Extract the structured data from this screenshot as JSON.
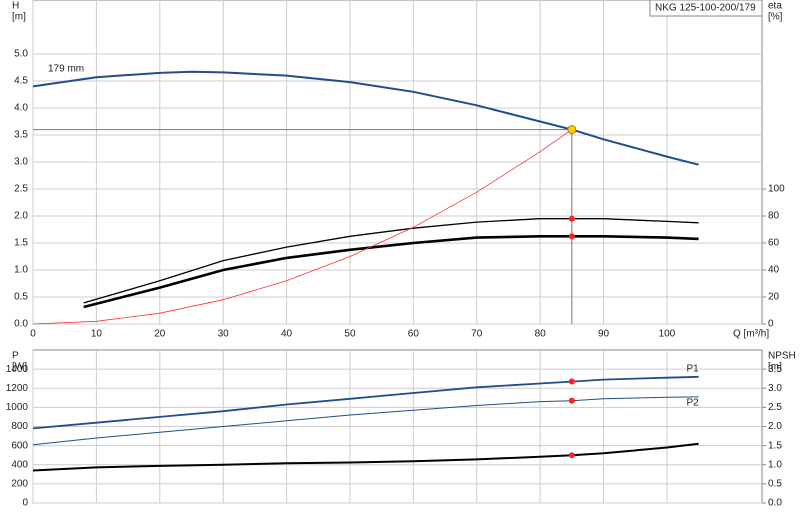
{
  "chart_data": [
    {
      "type": "line",
      "title": "NKG 125-100-200/179",
      "ylabel": "H",
      "yunit": "[m]",
      "y2label": "eta",
      "y2unit": "[%]",
      "xlabel": "Q [m³/h]",
      "xlim": [
        0,
        115
      ],
      "xticks": [
        0,
        10,
        20,
        30,
        40,
        50,
        60,
        70,
        80,
        90,
        100
      ],
      "ylim": [
        0,
        6
      ],
      "yticks": [
        {
          "value": 0,
          "label": "0.0"
        },
        {
          "value": 0.5,
          "label": "0.5"
        },
        {
          "value": 1,
          "label": "1.0"
        },
        {
          "value": 1.5,
          "label": "1.5"
        },
        {
          "value": 2,
          "label": "2.0"
        },
        {
          "value": 2.5,
          "label": "2.5"
        },
        {
          "value": 3,
          "label": "3.0"
        },
        {
          "value": 3.5,
          "label": "3.5"
        },
        {
          "value": 4,
          "label": "4.0"
        },
        {
          "value": 4.5,
          "label": "4.5"
        },
        {
          "value": 5,
          "label": "5.0"
        }
      ],
      "y2lim": [
        0,
        240
      ],
      "y2ticks": [
        0,
        20,
        40,
        60,
        80,
        100
      ],
      "grid": true,
      "show_xtick_labels": true,
      "series": [
        {
          "name": "179 mm",
          "color": "#1f4e8c",
          "width": 2,
          "x": [
            0,
            10,
            20,
            25,
            30,
            40,
            50,
            60,
            70,
            80,
            85,
            90,
            100,
            105
          ],
          "values": [
            4.4,
            4.57,
            4.65,
            4.67,
            4.66,
            4.6,
            4.48,
            4.3,
            4.05,
            3.75,
            3.6,
            3.42,
            3.1,
            2.95
          ]
        },
        {
          "color": "#000000",
          "width": 1.3,
          "axis": "y2",
          "x": [
            8,
            20,
            30,
            40,
            50,
            60,
            70,
            80,
            85,
            90,
            100,
            105
          ],
          "values": [
            15.6,
            32,
            47,
            57,
            65,
            71,
            75.5,
            78,
            78,
            78,
            76,
            75
          ]
        },
        {
          "color": "#000000",
          "width": 2.6,
          "axis": "y2",
          "x": [
            8,
            20,
            30,
            40,
            50,
            60,
            70,
            80,
            85,
            90,
            100,
            105
          ],
          "values": [
            12.6,
            27,
            40,
            49,
            55,
            60,
            64,
            65,
            65,
            65,
            64,
            63
          ]
        },
        {
          "color": "#ff3030",
          "width": 0.8,
          "x": [
            0,
            10,
            20,
            30,
            40,
            50,
            60,
            70,
            80,
            85
          ],
          "values": [
            0,
            0.05,
            0.2,
            0.45,
            0.8,
            1.25,
            1.79,
            2.44,
            3.19,
            3.6
          ]
        }
      ],
      "markers": [
        {
          "x": 85,
          "y": 3.6,
          "color": "#ffd000",
          "guides": true
        },
        {
          "x": 85,
          "y": 78,
          "color": "#ff2020",
          "axis": "y2"
        },
        {
          "x": 85,
          "y": 65,
          "color": "#ff2020",
          "axis": "y2"
        }
      ]
    },
    {
      "type": "line",
      "ylabel": "P",
      "yunit": "[W]",
      "y2label": "NPSH",
      "y2unit": "[m]",
      "xlim": [
        0,
        115
      ],
      "xticks": [
        0,
        10,
        20,
        30,
        40,
        50,
        60,
        70,
        80,
        90,
        100
      ],
      "ylim": [
        0,
        1600
      ],
      "yticks": [
        0,
        200,
        400,
        600,
        800,
        1000,
        1200,
        1400
      ],
      "y2lim": [
        0,
        4
      ],
      "y2ticks": [
        {
          "value": 0,
          "label": "0.0"
        },
        {
          "value": 0.5,
          "label": "0.5"
        },
        {
          "value": 1,
          "label": "1.0"
        },
        {
          "value": 1.5,
          "label": "1.5"
        },
        {
          "value": 2,
          "label": "2.0"
        },
        {
          "value": 2.5,
          "label": "2.5"
        },
        {
          "value": 3,
          "label": "3.0"
        },
        {
          "value": 3.5,
          "label": "3.5"
        }
      ],
      "grid": true,
      "show_xtick_labels": false,
      "series": [
        {
          "name": "P1",
          "color": "#1f4e8c",
          "width": 1.8,
          "x": [
            0,
            10,
            20,
            30,
            40,
            50,
            60,
            70,
            80,
            85,
            90,
            100,
            105
          ],
          "values": [
            780,
            840,
            900,
            960,
            1030,
            1090,
            1150,
            1210,
            1250,
            1270,
            1290,
            1310,
            1320
          ]
        },
        {
          "name": "P2",
          "color": "#1f4e8c",
          "width": 1,
          "x": [
            0,
            10,
            20,
            30,
            40,
            50,
            60,
            70,
            80,
            85,
            90,
            100,
            105
          ],
          "values": [
            610,
            680,
            740,
            800,
            860,
            920,
            970,
            1020,
            1060,
            1070,
            1090,
            1105,
            1110
          ]
        },
        {
          "color": "#000000",
          "width": 2,
          "axis": "y2",
          "x": [
            0,
            10,
            20,
            30,
            40,
            50,
            60,
            70,
            80,
            85,
            90,
            100,
            105
          ],
          "values": [
            0.85,
            0.93,
            0.97,
            1,
            1.04,
            1.06,
            1.09,
            1.14,
            1.21,
            1.25,
            1.3,
            1.45,
            1.55
          ]
        }
      ],
      "markers": [
        {
          "x": 85,
          "y": 1270,
          "color": "#ff2020"
        },
        {
          "x": 85,
          "y": 1070,
          "color": "#ff2020"
        },
        {
          "x": 85,
          "y": 1.25,
          "color": "#ff2020",
          "axis": "y2"
        }
      ]
    }
  ]
}
